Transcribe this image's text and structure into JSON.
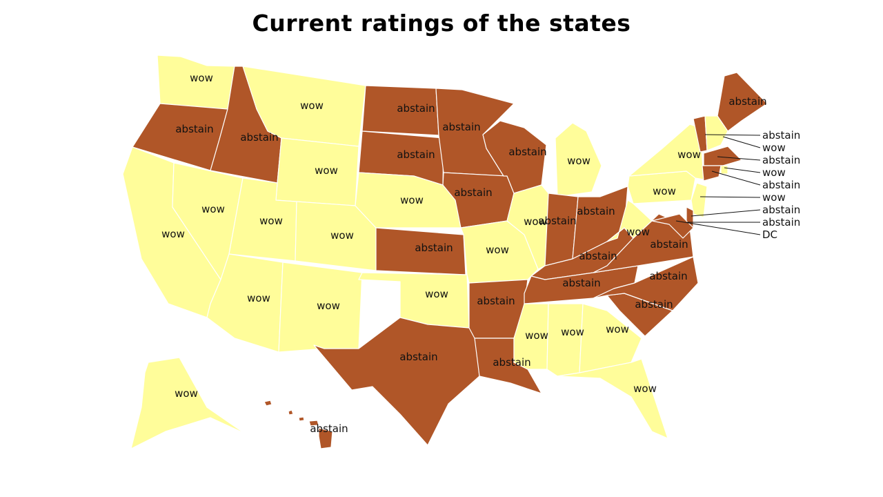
{
  "title": "Current ratings of the states",
  "legend_colors": {
    "abstain": "#b05628",
    "wow": "#fffd9a"
  },
  "states": [
    {
      "id": "WA",
      "rating": "wow"
    },
    {
      "id": "OR",
      "rating": "abstain"
    },
    {
      "id": "CA",
      "rating": "wow"
    },
    {
      "id": "ID",
      "rating": "abstain"
    },
    {
      "id": "NV",
      "rating": "wow"
    },
    {
      "id": "MT",
      "rating": "wow"
    },
    {
      "id": "WY",
      "rating": "wow"
    },
    {
      "id": "UT",
      "rating": "wow"
    },
    {
      "id": "CO",
      "rating": "wow"
    },
    {
      "id": "AZ",
      "rating": "wow"
    },
    {
      "id": "NM",
      "rating": "wow"
    },
    {
      "id": "ND",
      "rating": "abstain"
    },
    {
      "id": "SD",
      "rating": "abstain"
    },
    {
      "id": "NE",
      "rating": "wow"
    },
    {
      "id": "KS",
      "rating": "abstain"
    },
    {
      "id": "OK",
      "rating": "wow"
    },
    {
      "id": "TX",
      "rating": "abstain"
    },
    {
      "id": "MN",
      "rating": "abstain"
    },
    {
      "id": "IA",
      "rating": "abstain"
    },
    {
      "id": "MO",
      "rating": "wow"
    },
    {
      "id": "AR",
      "rating": "abstain"
    },
    {
      "id": "LA",
      "rating": "abstain"
    },
    {
      "id": "WI",
      "rating": "abstain"
    },
    {
      "id": "IL",
      "rating": "wow"
    },
    {
      "id": "MI",
      "rating": "wow"
    },
    {
      "id": "IN",
      "rating": "abstain"
    },
    {
      "id": "OH",
      "rating": "abstain"
    },
    {
      "id": "KY",
      "rating": "abstain"
    },
    {
      "id": "TN",
      "rating": "abstain"
    },
    {
      "id": "MS",
      "rating": "wow"
    },
    {
      "id": "AL",
      "rating": "wow"
    },
    {
      "id": "GA",
      "rating": "wow"
    },
    {
      "id": "FL",
      "rating": "wow"
    },
    {
      "id": "SC",
      "rating": "abstain"
    },
    {
      "id": "NC",
      "rating": "abstain"
    },
    {
      "id": "VA",
      "rating": "abstain"
    },
    {
      "id": "WV",
      "rating": "wow"
    },
    {
      "id": "PA",
      "rating": "wow"
    },
    {
      "id": "NY",
      "rating": "wow"
    },
    {
      "id": "ME",
      "rating": "abstain"
    },
    {
      "id": "AK",
      "rating": "wow"
    },
    {
      "id": "HI",
      "rating": "abstain"
    },
    {
      "id": "VT",
      "rating": "abstain"
    },
    {
      "id": "NH",
      "rating": "wow"
    },
    {
      "id": "MA",
      "rating": "abstain"
    },
    {
      "id": "RI",
      "rating": "wow"
    },
    {
      "id": "CT",
      "rating": "abstain"
    },
    {
      "id": "NJ",
      "rating": "wow"
    },
    {
      "id": "DE",
      "rating": "abstain"
    },
    {
      "id": "MD",
      "rating": "abstain"
    },
    {
      "id": "DC",
      "rating": "abstain"
    }
  ],
  "callouts": [
    {
      "text": "abstain"
    },
    {
      "text": "wow"
    },
    {
      "text": "abstain"
    },
    {
      "text": "wow"
    },
    {
      "text": "abstain"
    },
    {
      "text": "wow"
    },
    {
      "text": "abstain"
    },
    {
      "text": "abstain"
    },
    {
      "text": "DC"
    }
  ]
}
